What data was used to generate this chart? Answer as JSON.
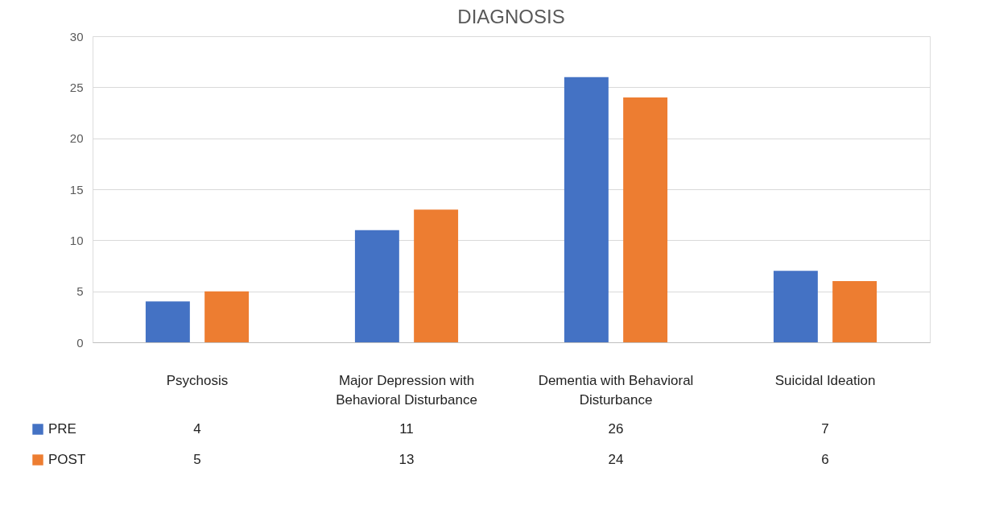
{
  "chart_data": {
    "type": "bar",
    "title": "DIAGNOSIS",
    "categories": [
      "Psychosis",
      "Major Depression with Behavioral Disturbance",
      "Dementia with Behavioral Disturbance",
      "Suicidal Ideation"
    ],
    "series": [
      {
        "name": "PRE",
        "color": "#4472c4",
        "values": [
          4,
          11,
          26,
          7
        ]
      },
      {
        "name": "POST",
        "color": "#ed7d31",
        "values": [
          5,
          13,
          24,
          6
        ]
      }
    ],
    "ylim": [
      0,
      30
    ],
    "yticks": [
      0,
      5,
      10,
      15,
      20,
      25,
      30
    ],
    "grid": "y",
    "legend": "bottom",
    "data_labels": true
  }
}
